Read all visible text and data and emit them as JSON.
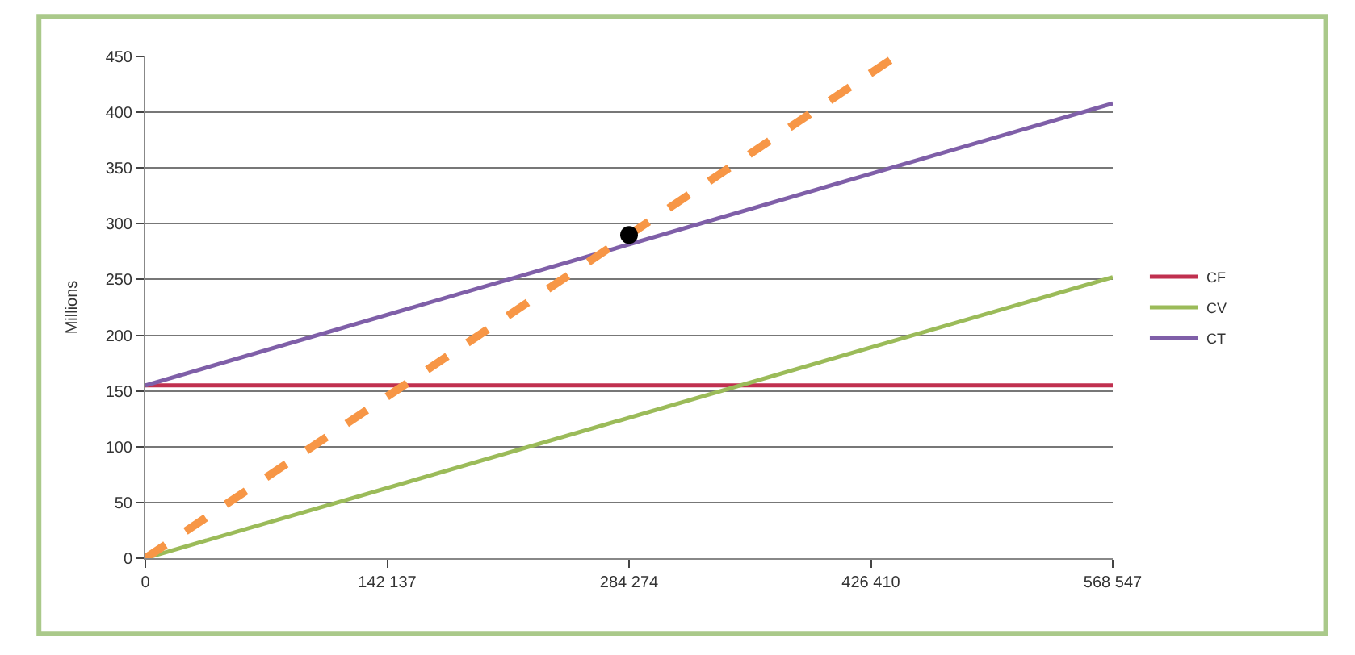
{
  "chart_data": {
    "type": "line",
    "ylabel": "Millions",
    "xlim": [
      0,
      568547
    ],
    "xticks": [
      0,
      {
        "value": 142137,
        "label": "142 137"
      },
      {
        "value": 284274,
        "label": "284 274"
      },
      {
        "value": 426410,
        "label": "426 410"
      },
      {
        "value": 568547,
        "label": "568 547"
      }
    ],
    "ylim": [
      0,
      450
    ],
    "yticks": [
      0,
      50,
      100,
      150,
      200,
      250,
      300,
      350,
      400,
      450
    ],
    "grid": "y",
    "legend": "right",
    "marker": "none",
    "series": [
      {
        "name": "CF",
        "color": "#c0304f",
        "x": [
          0,
          568547
        ],
        "values": [
          155,
          155
        ]
      },
      {
        "name": "CV",
        "color": "#9bbb59",
        "x": [
          0,
          568547
        ],
        "values": [
          0,
          252
        ]
      },
      {
        "name": "CT",
        "color": "#7f5fa8",
        "x": [
          0,
          568547
        ],
        "values": [
          155,
          408
        ]
      },
      {
        "color": "#f79646",
        "line_style": "dashed",
        "x": [
          0,
          441000
        ],
        "values": [
          0,
          450
        ]
      },
      {
        "type": "scatter",
        "marker": "circle",
        "color": "#000000",
        "x": [
          284274
        ],
        "values": [
          290
        ]
      }
    ]
  }
}
